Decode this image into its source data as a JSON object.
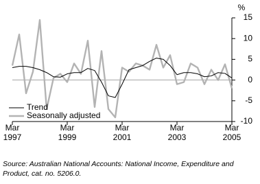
{
  "chart_data": {
    "type": "line",
    "y_label": "%",
    "categories": [
      "Mar 1997",
      null,
      null,
      null,
      null,
      null,
      null,
      null,
      "Mar 1999",
      null,
      null,
      null,
      null,
      null,
      null,
      null,
      "Mar 2001",
      null,
      null,
      null,
      null,
      null,
      null,
      null,
      "Mar 2003",
      null,
      null,
      null,
      null,
      null,
      null,
      null,
      "Mar 2005"
    ],
    "series": [
      {
        "name": "Trend",
        "color": "#000000",
        "values": [
          3,
          3.3,
          3.3,
          3.0,
          2.5,
          1.8,
          0.8,
          0.7,
          1.5,
          1.8,
          1.8,
          2.8,
          2.3,
          -0.5,
          -3.8,
          -4.2,
          -1,
          2.5,
          3,
          3.5,
          4.5,
          5.3,
          5,
          3.5,
          1.3,
          1.8,
          1.8,
          1.5,
          0.8,
          1,
          1.8,
          1.6,
          0.5
        ]
      },
      {
        "name": "Seasonally adjusted",
        "color": "#b3b3b3",
        "values": [
          3.5,
          11,
          -3.2,
          2,
          14.5,
          -7,
          0.5,
          1.5,
          -0.5,
          4,
          1.5,
          9.5,
          -6.5,
          7,
          -7,
          -9,
          3,
          2,
          4,
          3.5,
          2.5,
          8.5,
          3,
          6,
          -1,
          -0.5,
          4,
          3,
          -1,
          2.5,
          0,
          3.8,
          -2
        ]
      }
    ],
    "ylim": [
      -10,
      15
    ],
    "yticks": [
      -10,
      -5,
      0,
      5,
      10,
      15
    ],
    "legend": "lower left",
    "source": "Source: Australian National Accounts: National Income, Expenditure and Product, cat. no. 5206.0."
  }
}
